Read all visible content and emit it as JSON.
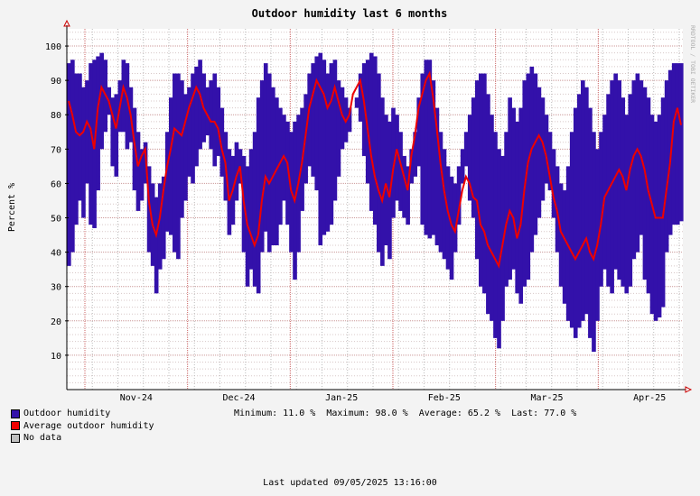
{
  "chart_data": {
    "type": "area",
    "title": "Outdoor humidity last 6 months",
    "ylabel": "Percent  %",
    "ylim": [
      0,
      105
    ],
    "y_ticks": [
      10,
      20,
      30,
      40,
      50,
      60,
      70,
      80,
      90,
      100
    ],
    "x_ticks": [
      "Nov-24",
      "Dec-24",
      "Jan-25",
      "Feb-25",
      "Mar-25",
      "Apr-25"
    ],
    "grid": true,
    "legend_position": "bottom-left",
    "series": [
      {
        "name": "Outdoor humidity",
        "color": "#3311aa",
        "style": "daily min-max range",
        "points_per_day": 1,
        "min": [
          36,
          40,
          48,
          55,
          50,
          60,
          48,
          47,
          58,
          70,
          75,
          80,
          65,
          62,
          75,
          75,
          70,
          72,
          58,
          52,
          55,
          60,
          40,
          36,
          28,
          35,
          38,
          46,
          45,
          40,
          38,
          50,
          55,
          62,
          60,
          65,
          70,
          72,
          74,
          70,
          65,
          68,
          62,
          55,
          45,
          48,
          55,
          60,
          40,
          30,
          35,
          30,
          28,
          40,
          46,
          40,
          42,
          42,
          48,
          55,
          48,
          40,
          32,
          40,
          52,
          60,
          65,
          62,
          58,
          42,
          45,
          46,
          48,
          55,
          62,
          70,
          72,
          75,
          80,
          82,
          78,
          68,
          60,
          52,
          48,
          40,
          36,
          42,
          38,
          50,
          55,
          52,
          50,
          48,
          60,
          62,
          65,
          48,
          45,
          44,
          45,
          42,
          40,
          38,
          35,
          32,
          40,
          48,
          60,
          65,
          55,
          50,
          38,
          30,
          28,
          22,
          20,
          15,
          12,
          20,
          30,
          32,
          35,
          28,
          25,
          30,
          32,
          40,
          45,
          50,
          55,
          60,
          58,
          50,
          40,
          30,
          25,
          20,
          18,
          15,
          18,
          20,
          22,
          15,
          11,
          20,
          30,
          35,
          30,
          28,
          35,
          32,
          30,
          28,
          30,
          38,
          40,
          45,
          32,
          28,
          22,
          20,
          21,
          24,
          40,
          45,
          48,
          48,
          49
        ],
        "max": [
          95,
          96,
          92,
          92,
          88,
          90,
          95,
          96,
          97,
          98,
          96,
          88,
          85,
          86,
          90,
          96,
          95,
          88,
          82,
          75,
          70,
          72,
          65,
          60,
          56,
          60,
          62,
          75,
          85,
          92,
          92,
          90,
          86,
          88,
          92,
          94,
          96,
          92,
          88,
          90,
          92,
          88,
          82,
          75,
          70,
          68,
          72,
          70,
          68,
          65,
          70,
          75,
          85,
          90,
          95,
          92,
          88,
          85,
          82,
          80,
          78,
          75,
          78,
          80,
          82,
          86,
          92,
          95,
          97,
          98,
          96,
          92,
          95,
          96,
          90,
          88,
          85,
          82,
          80,
          85,
          92,
          95,
          96,
          98,
          97,
          92,
          85,
          80,
          78,
          82,
          80,
          75,
          68,
          65,
          70,
          75,
          85,
          92,
          96,
          96,
          90,
          82,
          75,
          70,
          65,
          62,
          60,
          65,
          70,
          75,
          80,
          85,
          90,
          92,
          92,
          86,
          80,
          75,
          70,
          68,
          75,
          85,
          82,
          78,
          82,
          90,
          92,
          94,
          92,
          88,
          85,
          80,
          75,
          70,
          65,
          60,
          58,
          65,
          75,
          82,
          86,
          90,
          88,
          82,
          75,
          70,
          75,
          80,
          86,
          90,
          92,
          90,
          85,
          80,
          86,
          90,
          92,
          90,
          88,
          85,
          80,
          78,
          80,
          85,
          90,
          93,
          95,
          95,
          95
        ],
        "values": [
          84,
          80,
          75,
          74,
          75,
          78,
          76,
          70,
          82,
          88,
          86,
          84,
          80,
          76,
          82,
          88,
          85,
          80,
          72,
          65,
          68,
          70,
          55,
          48,
          45,
          50,
          58,
          65,
          70,
          76,
          75,
          74,
          78,
          82,
          85,
          88,
          86,
          82,
          80,
          78,
          78,
          76,
          70,
          66,
          55,
          58,
          62,
          65,
          55,
          48,
          45,
          42,
          45,
          55,
          62,
          60,
          62,
          64,
          66,
          68,
          66,
          58,
          55,
          60,
          66,
          74,
          82,
          86,
          90,
          88,
          86,
          82,
          84,
          88,
          84,
          80,
          78,
          80,
          86,
          88,
          90,
          84,
          76,
          68,
          62,
          58,
          55,
          60,
          56,
          64,
          70,
          66,
          62,
          58,
          68,
          74,
          82,
          86,
          90,
          92,
          85,
          76,
          66,
          58,
          52,
          48,
          46,
          52,
          58,
          62,
          60,
          56,
          55,
          48,
          46,
          42,
          40,
          38,
          36,
          42,
          48,
          52,
          50,
          44,
          48,
          58,
          66,
          70,
          72,
          74,
          72,
          68,
          62,
          56,
          52,
          46,
          44,
          42,
          40,
          38,
          40,
          42,
          44,
          40,
          38,
          42,
          48,
          56,
          58,
          60,
          62,
          64,
          62,
          58,
          64,
          68,
          70,
          68,
          64,
          58,
          54,
          50,
          50,
          50,
          58,
          66,
          78,
          82,
          77
        ]
      },
      {
        "name": "Average outdoor humidity",
        "color": "#ee0000",
        "style": "line"
      },
      {
        "name": "No data",
        "color": "#c0c0c0",
        "style": "legend only"
      }
    ],
    "stats": {
      "minimum": "Minimum: 11.0 %",
      "maximum": "Maximum: 98.0 %",
      "average": "Average: 65.2 %",
      "last": "Last: 77.0 %"
    },
    "watermark": "RRDTOOL / TOBI OETIKER",
    "last_updated": "Last updated 09/05/2025 13:16:00"
  }
}
